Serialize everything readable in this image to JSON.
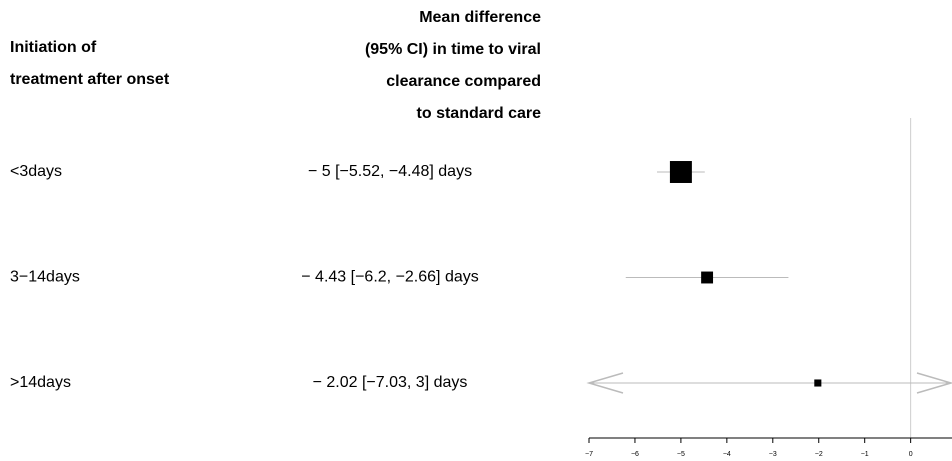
{
  "chart_data": {
    "type": "forest",
    "left_header": [
      "Initiation of",
      "treatment after onset"
    ],
    "right_header": [
      "Mean difference",
      "(95% CI) in time to viral",
      "clearance compared",
      "to standard care"
    ],
    "categories": [
      "<3days",
      "3−14days",
      ">14days"
    ],
    "values": [
      -5,
      -4.43,
      -2.02
    ],
    "value_labels": [
      "− 5 [−5.52, −4.48] days",
      "− 4.43 [−6.2, −2.66] days",
      "− 2.02 [−7.03, 3] days"
    ],
    "lower": [
      -5.52,
      -6.2,
      -7.03
    ],
    "upper": [
      -4.48,
      -2.66,
      3
    ],
    "color": "#000000",
    "ci_color": "#bbbbbb",
    "xlim": [
      -7,
      0.9
    ],
    "xticks": [
      {
        "value": -7,
        "label": "−7"
      },
      {
        "value": -6,
        "label": "−6"
      },
      {
        "value": -5,
        "label": "−5"
      },
      {
        "value": -4,
        "label": "−4"
      },
      {
        "value": -3,
        "label": "−3"
      },
      {
        "value": -2,
        "label": "−2"
      },
      {
        "value": -1,
        "label": "−1"
      },
      0
    ]
  }
}
